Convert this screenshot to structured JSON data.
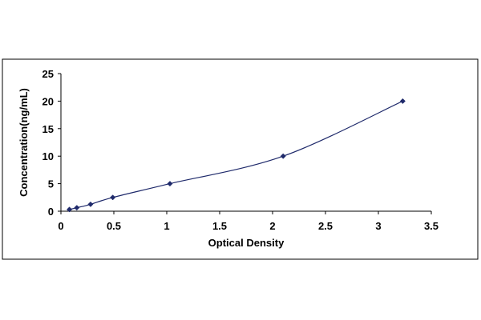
{
  "chart_data": {
    "type": "scatter",
    "title": "",
    "xlabel": "Optical Density",
    "ylabel": "Concentration(ng/mL)",
    "xlim": [
      0,
      3.5
    ],
    "ylim": [
      0,
      25
    ],
    "x_ticks": [
      "0",
      "0.5",
      "1",
      "1.5",
      "2",
      "2.5",
      "3",
      "3.5"
    ],
    "y_ticks": [
      "0",
      "5",
      "10",
      "15",
      "20",
      "25"
    ],
    "grid": false,
    "legend": "none",
    "series": [
      {
        "x": [
          0.08,
          0.15,
          0.28,
          0.49,
          1.03,
          2.1,
          3.23
        ],
        "y": [
          0.31,
          0.63,
          1.25,
          2.5,
          5,
          10,
          20
        ],
        "marker": "diamond",
        "line": "smooth"
      }
    ],
    "colors": {
      "marker": "#1F2A6B",
      "line": "#1F2A6B",
      "axis": "#000000",
      "border": "#000000"
    }
  }
}
